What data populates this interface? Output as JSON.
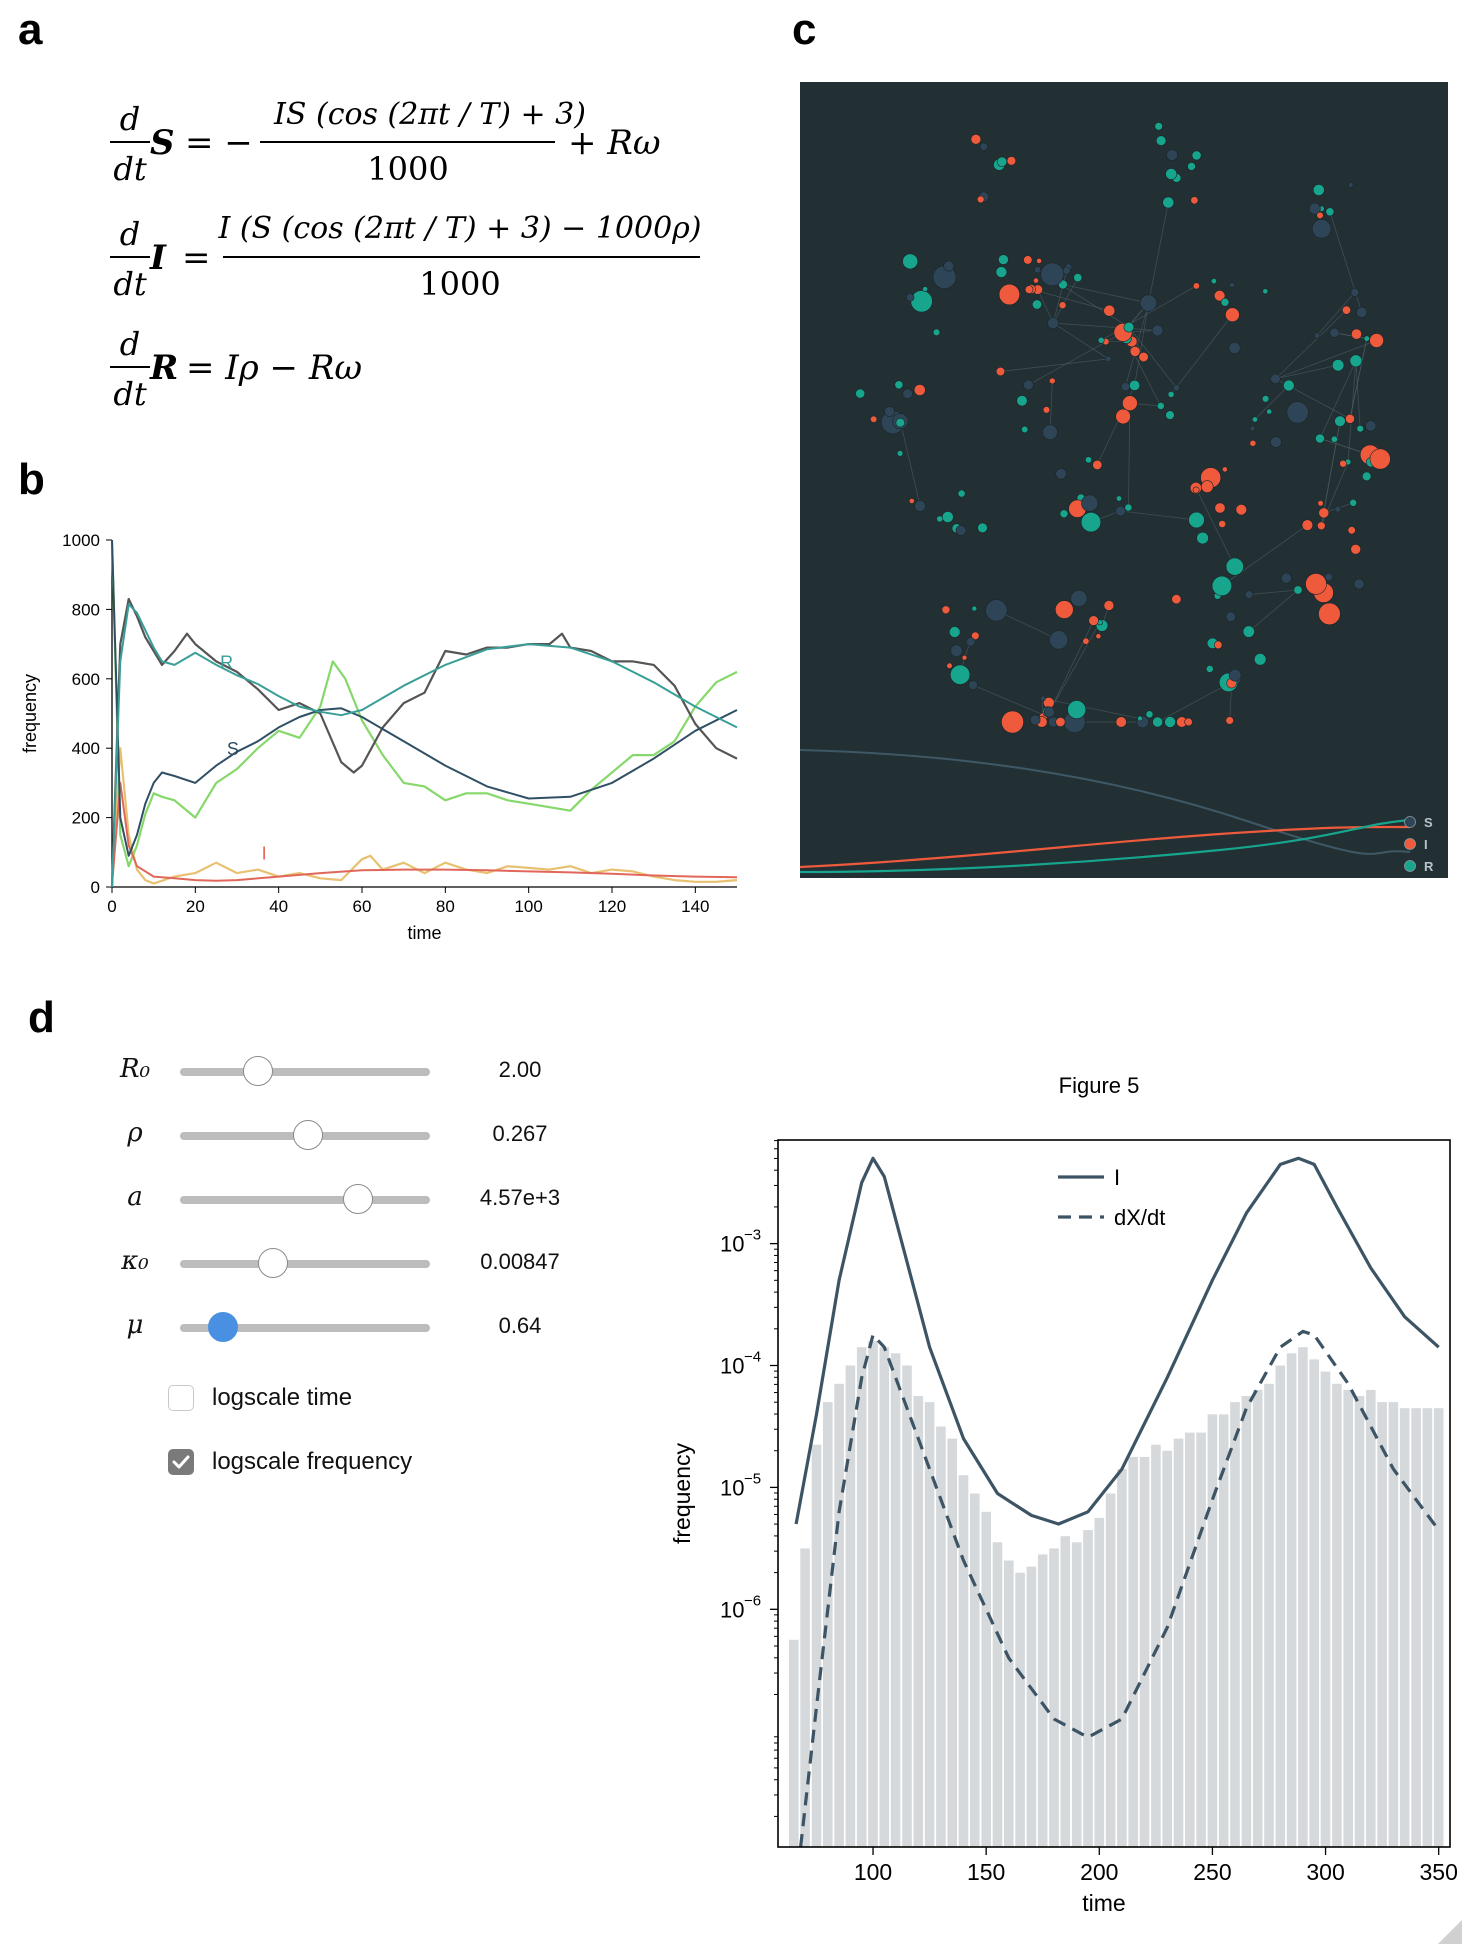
{
  "panels": {
    "a": "a",
    "b": "b",
    "c": "c",
    "d": "d"
  },
  "equations": {
    "eq1": {
      "lhs_d": "d",
      "lhs_dt": "dt",
      "lhs_var": "S",
      "sign": "= −",
      "numerator": "IS (cos (2πt / T) + 3)",
      "denominator": "1000",
      "tail": "+ Rω"
    },
    "eq2": {
      "lhs_d": "d",
      "lhs_dt": "dt",
      "lhs_var": "I",
      "sign": "=",
      "numerator": "I (S (cos (2πt / T) + 3) − 1000ρ)",
      "denominator": "1000"
    },
    "eq3": {
      "lhs_d": "d",
      "lhs_dt": "dt",
      "lhs_var": "R",
      "rhs": "= Iρ − Rω"
    }
  },
  "chart_data": [
    {
      "panel": "b",
      "type": "line",
      "xlabel": "time",
      "ylabel": "frequency",
      "xlim": [
        0,
        150
      ],
      "ylim": [
        0,
        1000
      ],
      "x_ticks": [
        "0",
        "20",
        "40",
        "60",
        "80",
        "100",
        "120",
        "140"
      ],
      "y_ticks": [
        "0",
        "200",
        "400",
        "600",
        "800",
        "1000"
      ],
      "annotations": [
        "R",
        "S",
        "I"
      ],
      "colors": {
        "R_model": "#3a9e98",
        "S_model": "#2f4f64",
        "I_model": "#e0675a",
        "R_sim": "#555555",
        "S_sim": "#86d86a",
        "I_sim": "#e8c170"
      },
      "series": [
        {
          "name": "R",
          "x": [
            0,
            2,
            4,
            6,
            8,
            10,
            12,
            15,
            20,
            25,
            30,
            35,
            40,
            45,
            50,
            55,
            60,
            70,
            80,
            90,
            100,
            110,
            120,
            130,
            140,
            150
          ],
          "values": [
            0,
            650,
            815,
            790,
            740,
            690,
            650,
            640,
            675,
            640,
            610,
            585,
            550,
            520,
            505,
            495,
            510,
            580,
            640,
            685,
            700,
            690,
            650,
            590,
            520,
            460
          ]
        },
        {
          "name": "S",
          "x": [
            0,
            2,
            4,
            6,
            8,
            10,
            12,
            15,
            20,
            25,
            30,
            35,
            40,
            45,
            50,
            55,
            60,
            70,
            80,
            90,
            100,
            110,
            120,
            130,
            140,
            150
          ],
          "values": [
            1000,
            200,
            90,
            150,
            240,
            300,
            330,
            320,
            300,
            350,
            390,
            420,
            460,
            490,
            510,
            515,
            490,
            420,
            350,
            290,
            255,
            260,
            300,
            370,
            450,
            510
          ]
        },
        {
          "name": "I",
          "x": [
            0,
            2,
            4,
            6,
            10,
            15,
            20,
            25,
            30,
            40,
            50,
            60,
            70,
            80,
            90,
            100,
            110,
            120,
            130,
            140,
            150
          ],
          "values": [
            5,
            300,
            120,
            60,
            30,
            25,
            20,
            18,
            20,
            30,
            40,
            48,
            50,
            50,
            48,
            45,
            42,
            38,
            33,
            30,
            28
          ]
        },
        {
          "name": "R_sim",
          "x": [
            0,
            2,
            4,
            6,
            8,
            10,
            12,
            15,
            18,
            20,
            25,
            30,
            35,
            40,
            45,
            50,
            55,
            58,
            60,
            65,
            70,
            75,
            80,
            85,
            90,
            95,
            100,
            105,
            108,
            110,
            115,
            120,
            125,
            130,
            135,
            140,
            145,
            150
          ],
          "values": [
            0,
            700,
            830,
            780,
            720,
            680,
            640,
            680,
            730,
            700,
            650,
            620,
            570,
            510,
            530,
            500,
            360,
            330,
            350,
            460,
            530,
            560,
            680,
            670,
            690,
            690,
            700,
            700,
            730,
            690,
            680,
            650,
            650,
            640,
            580,
            470,
            400,
            370
          ]
        },
        {
          "name": "S_sim",
          "x": [
            0,
            2,
            4,
            6,
            8,
            10,
            12,
            15,
            20,
            25,
            30,
            35,
            40,
            45,
            50,
            53,
            56,
            60,
            65,
            70,
            75,
            80,
            85,
            90,
            95,
            100,
            105,
            110,
            115,
            120,
            125,
            130,
            135,
            140,
            145,
            150
          ],
          "values": [
            1000,
            150,
            60,
            120,
            210,
            270,
            260,
            250,
            200,
            300,
            340,
            400,
            450,
            430,
            520,
            650,
            600,
            480,
            380,
            300,
            290,
            250,
            270,
            270,
            250,
            240,
            230,
            220,
            280,
            330,
            380,
            380,
            420,
            520,
            590,
            620
          ]
        },
        {
          "name": "I_sim",
          "x": [
            0,
            2,
            4,
            6,
            8,
            10,
            15,
            20,
            25,
            30,
            35,
            40,
            45,
            50,
            55,
            60,
            62,
            65,
            70,
            75,
            80,
            85,
            90,
            95,
            100,
            105,
            110,
            115,
            120,
            125,
            130,
            135,
            140,
            145,
            150
          ],
          "values": [
            5,
            400,
            150,
            50,
            20,
            10,
            30,
            40,
            70,
            40,
            50,
            30,
            40,
            25,
            20,
            80,
            90,
            50,
            70,
            40,
            70,
            50,
            40,
            60,
            55,
            50,
            60,
            40,
            50,
            45,
            30,
            20,
            15,
            15,
            20
          ]
        }
      ]
    },
    {
      "panel": "c",
      "type": "scatter",
      "description_legend": [
        "S",
        "I",
        "R"
      ],
      "legend_placement": "bottom-right",
      "colors": {
        "S": "#2d4556",
        "I": "#f05a3c",
        "R": "#17a58e",
        "background": "#223034",
        "edge": "#4d5c63"
      }
    },
    {
      "panel": "d",
      "type": "line",
      "title": "Figure 5",
      "xlabel": "time",
      "ylabel": "frequency",
      "y_scale": "log",
      "xlim": [
        58,
        355
      ],
      "ylim_log10": [
        -7.95,
        -2.15
      ],
      "x_ticks": [
        "100",
        "150",
        "200",
        "250",
        "300",
        "350"
      ],
      "y_tick_bases": [
        "10",
        "10",
        "10",
        "10"
      ],
      "y_tick_exps": [
        "−3",
        "−4",
        "−5",
        "−6"
      ],
      "y_tick_values": [
        -3,
        -4,
        -5,
        -6
      ],
      "legend": [
        "I",
        "dX/dt"
      ],
      "legend_placement": "top-center",
      "colors": {
        "line": "#3d5464",
        "bars": "#d5d9dc"
      },
      "bars_log10": {
        "x": [
          65,
          70,
          75,
          80,
          85,
          90,
          95,
          100,
          105,
          110,
          115,
          120,
          125,
          130,
          135,
          140,
          145,
          150,
          155,
          160,
          165,
          170,
          175,
          180,
          185,
          190,
          195,
          200,
          205,
          210,
          215,
          220,
          225,
          230,
          235,
          240,
          245,
          250,
          255,
          260,
          265,
          270,
          275,
          280,
          285,
          290,
          295,
          300,
          305,
          310,
          315,
          320,
          325,
          330,
          335,
          340,
          345,
          350
        ],
        "values": [
          -6.25,
          -5.5,
          -4.65,
          -4.3,
          -4.15,
          -4.0,
          -3.85,
          -3.8,
          -3.85,
          -3.9,
          -4.0,
          -4.25,
          -4.3,
          -4.5,
          -4.6,
          -4.9,
          -5.05,
          -5.2,
          -5.45,
          -5.6,
          -5.7,
          -5.65,
          -5.55,
          -5.5,
          -5.4,
          -5.45,
          -5.35,
          -5.25,
          -5.05,
          -4.85,
          -4.75,
          -4.75,
          -4.65,
          -4.7,
          -4.6,
          -4.55,
          -4.55,
          -4.4,
          -4.4,
          -4.3,
          -4.25,
          -4.2,
          -4.15,
          -4.0,
          -3.9,
          -3.85,
          -3.95,
          -4.05,
          -4.15,
          -4.2,
          -4.25,
          -4.2,
          -4.3,
          -4.3,
          -4.35,
          -4.35,
          -4.35,
          -4.35
        ]
      },
      "series": [
        {
          "name": "I",
          "x": [
            66,
            75,
            85,
            95,
            100,
            105,
            115,
            125,
            140,
            155,
            170,
            182,
            195,
            210,
            230,
            250,
            265,
            280,
            288,
            295,
            305,
            320,
            335,
            350
          ],
          "values_log10": [
            -5.3,
            -4.4,
            -3.3,
            -2.5,
            -2.3,
            -2.45,
            -3.15,
            -3.85,
            -4.6,
            -5.05,
            -5.23,
            -5.3,
            -5.2,
            -4.85,
            -4.1,
            -3.3,
            -2.75,
            -2.35,
            -2.3,
            -2.35,
            -2.7,
            -3.2,
            -3.6,
            -3.85
          ]
        },
        {
          "name": "dX/dt",
          "x": [
            68,
            75,
            85,
            95,
            100,
            105,
            120,
            140,
            160,
            180,
            195,
            210,
            230,
            250,
            265,
            280,
            290,
            295,
            310,
            330,
            350
          ],
          "values_log10": [
            -7.95,
            -6.8,
            -5.2,
            -4.1,
            -3.75,
            -3.85,
            -4.6,
            -5.6,
            -6.4,
            -6.9,
            -7.05,
            -6.9,
            -6.15,
            -5.1,
            -4.35,
            -3.85,
            -3.72,
            -3.75,
            -4.15,
            -4.85,
            -5.35
          ]
        }
      ]
    }
  ],
  "controls": {
    "sliders": [
      {
        "name": "R0",
        "label": "R₀",
        "value_text": "2.00",
        "fraction": 0.31
      },
      {
        "name": "rho",
        "label": "ρ",
        "value_text": "0.267",
        "fraction": 0.51
      },
      {
        "name": "a",
        "label": "a",
        "value_text": "4.57e+3",
        "fraction": 0.71
      },
      {
        "name": "kappa0",
        "label": "κ₀",
        "value_text": "0.00847",
        "fraction": 0.37
      },
      {
        "name": "mu",
        "label": "μ",
        "value_text": "0.64",
        "fraction": 0.17
      }
    ],
    "checkboxes": [
      {
        "name": "logscale-time",
        "label": "logscale time",
        "checked": false
      },
      {
        "name": "logscale-frequency",
        "label": "logscale frequency",
        "checked": true
      }
    ]
  }
}
